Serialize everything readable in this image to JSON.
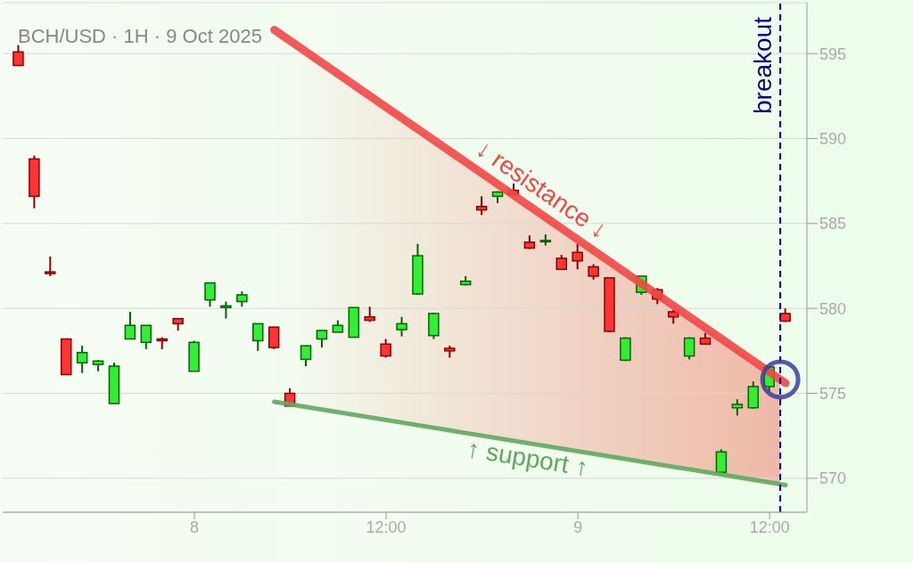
{
  "chart_data": {
    "type": "candlestick",
    "title": "BCH/USD · 1H · 9 Oct 2025",
    "x": [
      "2025-10-07T13:00",
      "2025-10-07T14:00",
      "2025-10-07T15:00",
      "2025-10-07T16:00",
      "2025-10-07T17:00",
      "2025-10-07T18:00",
      "2025-10-07T19:00",
      "2025-10-07T20:00",
      "2025-10-07T21:00",
      "2025-10-07T22:00",
      "2025-10-07T23:00",
      "2025-10-08T00:00",
      "2025-10-08T01:00",
      "2025-10-08T02:00",
      "2025-10-08T03:00",
      "2025-10-08T04:00",
      "2025-10-08T05:00",
      "2025-10-08T06:00",
      "2025-10-08T07:00",
      "2025-10-08T08:00",
      "2025-10-08T09:00",
      "2025-10-08T10:00",
      "2025-10-08T11:00",
      "2025-10-08T12:00",
      "2025-10-08T13:00",
      "2025-10-08T14:00",
      "2025-10-08T15:00",
      "2025-10-08T16:00",
      "2025-10-08T17:00",
      "2025-10-08T18:00",
      "2025-10-08T19:00",
      "2025-10-08T20:00",
      "2025-10-08T21:00",
      "2025-10-08T22:00",
      "2025-10-08T23:00",
      "2025-10-09T00:00",
      "2025-10-09T01:00",
      "2025-10-09T02:00",
      "2025-10-09T03:00",
      "2025-10-09T04:00",
      "2025-10-09T05:00",
      "2025-10-09T06:00",
      "2025-10-09T07:00",
      "2025-10-09T08:00",
      "2025-10-09T09:00",
      "2025-10-09T10:00",
      "2025-10-09T11:00",
      "2025-10-09T12:00",
      "2025-10-09T13:00"
    ],
    "ohlc": [
      [
        595.1,
        595.5,
        594.3,
        594.3
      ],
      [
        588.8,
        589.0,
        585.9,
        586.6
      ],
      [
        582.15,
        583.05,
        581.9,
        582.05
      ],
      [
        578.2,
        578.2,
        576.1,
        576.1
      ],
      [
        576.8,
        577.8,
        576.2,
        577.4
      ],
      [
        576.7,
        576.95,
        576.3,
        576.9
      ],
      [
        574.4,
        576.8,
        574.4,
        576.6
      ],
      [
        578.2,
        579.8,
        578.2,
        579.0
      ],
      [
        578.0,
        579.0,
        577.6,
        579.0
      ],
      [
        578.2,
        578.3,
        577.6,
        578.1
      ],
      [
        579.4,
        579.4,
        578.7,
        579.1
      ],
      [
        576.3,
        578.1,
        576.3,
        578.0
      ],
      [
        580.5,
        581.5,
        580.1,
        581.5
      ],
      [
        580.05,
        580.4,
        579.4,
        580.15
      ],
      [
        580.4,
        581.0,
        580.1,
        580.8
      ],
      [
        578.1,
        579.1,
        577.5,
        579.1
      ],
      [
        578.9,
        578.9,
        577.6,
        577.7
      ],
      [
        575.0,
        575.3,
        574.25,
        574.25
      ],
      [
        577.0,
        577.8,
        576.6,
        577.8
      ],
      [
        578.2,
        578.7,
        577.7,
        578.7
      ],
      [
        578.6,
        579.3,
        578.6,
        579.0
      ],
      [
        578.3,
        580.05,
        578.3,
        580.05
      ],
      [
        579.5,
        580.1,
        579.2,
        579.3
      ],
      [
        577.9,
        578.2,
        577.1,
        577.2
      ],
      [
        578.75,
        579.5,
        578.35,
        579.1
      ],
      [
        580.85,
        583.8,
        580.8,
        583.1
      ],
      [
        578.4,
        579.75,
        578.2,
        579.7
      ],
      [
        577.65,
        577.8,
        577.1,
        577.5
      ],
      [
        581.4,
        581.9,
        581.35,
        581.6
      ],
      [
        586.0,
        586.6,
        585.5,
        585.8
      ],
      [
        586.6,
        586.9,
        586.2,
        586.85
      ],
      [
        586.95,
        587.35,
        586.7,
        586.7
      ],
      [
        583.9,
        584.3,
        583.5,
        583.55
      ],
      [
        583.95,
        584.35,
        583.7,
        584.0
      ],
      [
        582.95,
        583.15,
        582.3,
        582.3
      ],
      [
        583.3,
        583.8,
        582.3,
        582.8
      ],
      [
        582.45,
        582.6,
        581.7,
        581.9
      ],
      [
        581.8,
        581.8,
        578.6,
        578.65
      ],
      [
        576.95,
        578.3,
        576.9,
        578.25
      ],
      [
        580.95,
        581.9,
        580.8,
        581.9
      ],
      [
        581.1,
        581.2,
        580.25,
        580.55
      ],
      [
        579.8,
        579.9,
        579.1,
        579.5
      ],
      [
        577.2,
        578.3,
        577.0,
        578.25
      ],
      [
        578.25,
        578.55,
        577.9,
        577.9
      ],
      [
        570.35,
        571.7,
        570.35,
        571.55
      ],
      [
        574.15,
        574.65,
        573.7,
        574.35
      ],
      [
        574.15,
        575.7,
        574.1,
        575.4
      ],
      [
        575.4,
        576.6,
        575.1,
        576.55
      ],
      [
        579.7,
        580.0,
        579.2,
        579.25
      ]
    ],
    "series": [
      {
        "type": "line",
        "name": "↓ resistance ↓",
        "color": "#f44646",
        "x": [
          "2025-10-08T05:00",
          "2025-10-09T13:00"
        ],
        "values": [
          596.4,
          575.6
        ]
      },
      {
        "type": "line",
        "name": "↑ support ↑",
        "color": "#5fa95f",
        "x": [
          "2025-10-08T05:00",
          "2025-10-09T13:00"
        ],
        "values": [
          574.5,
          569.6
        ]
      }
    ],
    "ref_lines": [
      {
        "axis": "x",
        "value": "2025-10-09T12:40",
        "label": "breakout",
        "color": "#00008b",
        "line_style": "dashed"
      }
    ],
    "xlim": [
      "2025-10-07T12:00",
      "2025-10-09T14:20"
    ],
    "xticks": [
      {
        "value": "2025-10-08T00:00",
        "label": "8"
      },
      {
        "value": "2025-10-08T12:00",
        "label": "12:00"
      },
      {
        "value": "2025-10-09T00:00",
        "label": "9"
      },
      {
        "value": "2025-10-09T12:00",
        "label": "12:00"
      }
    ],
    "ylim": [
      568,
      598
    ],
    "yticks": [
      570,
      575,
      580,
      585,
      590,
      595
    ],
    "grid": "y"
  }
}
